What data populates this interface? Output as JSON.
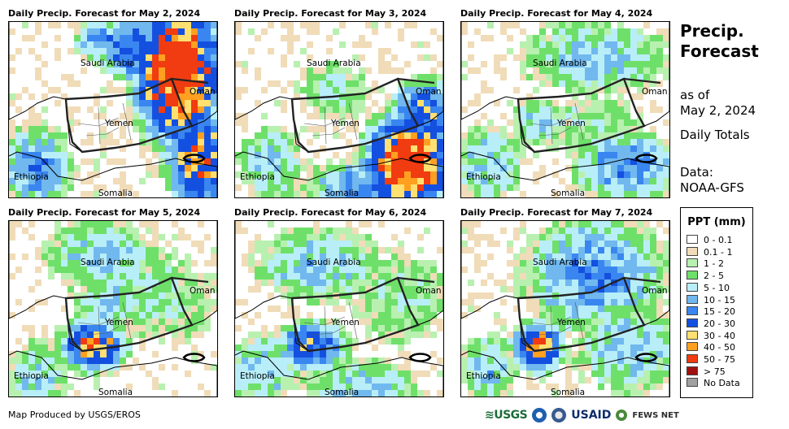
{
  "panels": [
    {
      "title": "Daily Precip. Forecast for May 2, 2024"
    },
    {
      "title": "Daily Precip. Forecast for May 3, 2024"
    },
    {
      "title": "Daily Precip. Forecast for May 4, 2024"
    },
    {
      "title": "Daily Precip. Forecast for May 5, 2024"
    },
    {
      "title": "Daily Precip. Forecast for May 6, 2024"
    },
    {
      "title": "Daily Precip. Forecast for May 7, 2024"
    }
  ],
  "labels": {
    "saudi": "Saudi Arabia",
    "oman": "Oman",
    "yemen": "Yemen",
    "ethiopia": "Ethiopia",
    "somalia": "Somalia"
  },
  "side": {
    "title_line1": "Precip.",
    "title_line2": "Forecast",
    "asof_line1": "as of",
    "asof_line2": "May 2, 2024",
    "totals": "Daily Totals",
    "data_line1": "Data:",
    "data_line2": "NOAA-GFS"
  },
  "legend": {
    "title": "PPT (mm)",
    "items": [
      {
        "label": "0 - 0.1",
        "color": "#ffffff"
      },
      {
        "label": "0.1 - 1",
        "color": "#f0dcb8"
      },
      {
        "label": "1 - 2",
        "color": "#b8f0b0"
      },
      {
        "label": "2 - 5",
        "color": "#6ee06a"
      },
      {
        "label": "5 - 10",
        "color": "#b8eef8"
      },
      {
        "label": "10 - 15",
        "color": "#70b8ee"
      },
      {
        "label": "15 - 20",
        "color": "#3a86f0"
      },
      {
        "label": "20 - 30",
        "color": "#1450e0"
      },
      {
        "label": "30 - 40",
        "color": "#ffe070"
      },
      {
        "label": "40 - 50",
        "color": "#ffa020"
      },
      {
        "label": "50 - 75",
        "color": "#f03c10"
      },
      {
        "label": "> 75",
        "color": "#a01010"
      },
      {
        "label": "No Data",
        "color": "#a0a0a0"
      }
    ]
  },
  "credit": "Map Produced by USGS/EROS",
  "logos": {
    "usgs": "≋USGS",
    "usaid": "USAID",
    "fews": "FEWS NET"
  }
}
